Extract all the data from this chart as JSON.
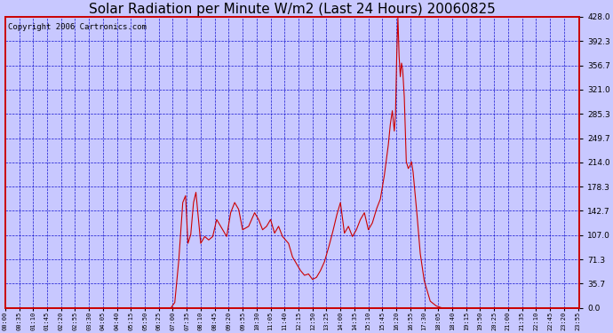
{
  "title": "Solar Radiation per Minute W/m2 (Last 24 Hours) 20060825",
  "copyright": "Copyright 2006 Cartronics.com",
  "background_color": "#c8c8ff",
  "plot_bg_color": "#c8c8ff",
  "line_color": "#cc0000",
  "grid_color": "#0000cc",
  "axis_color": "#cc0000",
  "title_color": "#000000",
  "ymin": 0.0,
  "ymax": 428.0,
  "yticks": [
    0.0,
    35.7,
    71.3,
    107.0,
    142.7,
    178.3,
    214.0,
    249.7,
    285.3,
    321.0,
    356.7,
    392.3,
    428.0
  ],
  "n_minutes": 1440,
  "xtick_interval": 35,
  "title_fontsize": 11,
  "copyright_fontsize": 6.5
}
